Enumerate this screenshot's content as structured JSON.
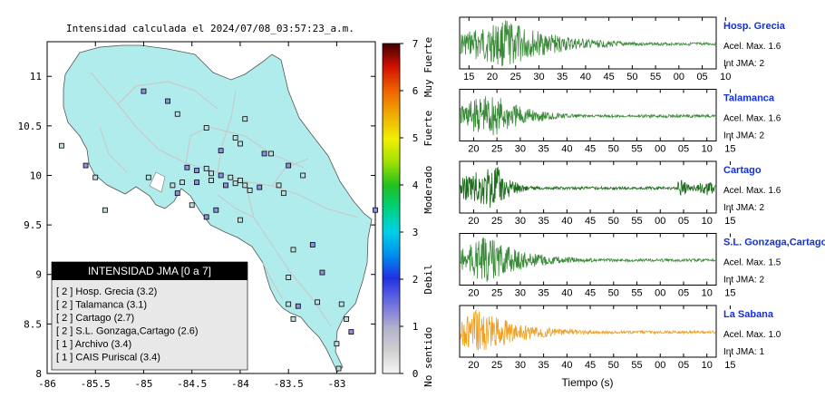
{
  "map": {
    "title": "Intensidad calculada el 2024/07/08_03:57:23_a.m.",
    "x_ticks": [
      "-86",
      "-85.5",
      "-85",
      "-84.5",
      "-84",
      "-83.5",
      "-83"
    ],
    "y_ticks": [
      "11",
      "10.5",
      "10",
      "9.5",
      "9",
      "8.5",
      "8"
    ],
    "xlim": [
      -86,
      -82.6
    ],
    "ylim": [
      8,
      11.35
    ],
    "land_color": "#b0ecec",
    "stations": [
      [
        -85.0,
        10.85
      ],
      [
        -84.75,
        10.75
      ],
      [
        -84.65,
        10.62
      ],
      [
        -84.35,
        10.48
      ],
      [
        -83.95,
        10.57
      ],
      [
        -84.2,
        10.25
      ],
      [
        -84.05,
        10.38
      ],
      [
        -83.75,
        10.22
      ],
      [
        -83.68,
        10.22
      ],
      [
        -83.5,
        10.1
      ],
      [
        -83.35,
        10.0
      ],
      [
        -84.0,
        10.32
      ],
      [
        -84.95,
        9.98
      ],
      [
        -84.55,
        10.08
      ],
      [
        -84.45,
        10.05
      ],
      [
        -84.35,
        10.07
      ],
      [
        -84.3,
        10.02
      ],
      [
        -84.2,
        10.0
      ],
      [
        -84.1,
        9.98
      ],
      [
        -84.0,
        9.95
      ],
      [
        -84.3,
        9.95
      ],
      [
        -84.15,
        9.9
      ],
      [
        -84.05,
        9.92
      ],
      [
        -83.95,
        9.9
      ],
      [
        -83.9,
        9.85
      ],
      [
        -84.45,
        9.93
      ],
      [
        -84.6,
        9.93
      ],
      [
        -84.7,
        9.9
      ],
      [
        -84.65,
        9.82
      ],
      [
        -83.8,
        9.88
      ],
      [
        -83.6,
        9.9
      ],
      [
        -83.55,
        9.82
      ],
      [
        -84.5,
        9.7
      ],
      [
        -84.35,
        9.58
      ],
      [
        -84.0,
        9.55
      ],
      [
        -84.25,
        9.65
      ],
      [
        -85.4,
        9.65
      ],
      [
        -85.6,
        10.1
      ],
      [
        -85.85,
        10.3
      ],
      [
        -85.5,
        9.98
      ],
      [
        -83.45,
        9.25
      ],
      [
        -83.25,
        9.3
      ],
      [
        -83.15,
        9.02
      ],
      [
        -83.5,
        8.97
      ],
      [
        -83.2,
        8.72
      ],
      [
        -83.4,
        8.68
      ],
      [
        -83.5,
        8.7
      ],
      [
        -82.95,
        8.7
      ],
      [
        -82.9,
        8.55
      ],
      [
        -82.85,
        8.42
      ],
      [
        -83.0,
        8.3
      ],
      [
        -82.98,
        8.05
      ],
      [
        -83.45,
        8.55
      ],
      [
        -82.6,
        9.65
      ]
    ],
    "legend_box": {
      "title": "INTENSIDAD JMA [0 a 7]",
      "items": [
        "[ 2 ]  Hosp. Grecia (3.2)",
        "[ 2 ]  Talamanca (3.1)",
        "[ 2 ]  Cartago (2.7)",
        "[ 2 ]  S.L. Gonzaga,Cartago (2.6)",
        "[ 1 ]  Archivo (3.4)",
        "[ 1 ]  CAIS Puriscal (3.4)"
      ]
    }
  },
  "colorbar": {
    "ticks": [
      "0",
      "1",
      "2",
      "3",
      "4",
      "5",
      "6",
      "7"
    ],
    "labels": [
      "No sentido",
      "Debil",
      "Moderado",
      "Fuerte",
      "Muy Fuerte"
    ]
  },
  "chart_data": [
    {
      "type": "line",
      "name": "Hosp. Grecia",
      "color": "#3a8a3a",
      "accel": "Acel. Max. 1.6",
      "jma": "Int JMA: 2",
      "x_ticks": [
        "15",
        "20",
        "25",
        "30",
        "35",
        "40",
        "45",
        "50",
        "55",
        "00",
        "05",
        "10"
      ],
      "tick_start": 15,
      "peak": 0.18,
      "decay": 0.18
    },
    {
      "type": "line",
      "name": "Talamanca",
      "color": "#3a8a3a",
      "accel": "Acel. Max. 1.6",
      "jma": "Int JMA: 2",
      "x_ticks": [
        "20",
        "25",
        "30",
        "35",
        "40",
        "45",
        "50",
        "55",
        "00",
        "05",
        "10",
        "15"
      ],
      "tick_start": 17,
      "peak": 0.12,
      "decay": 0.12
    },
    {
      "type": "line",
      "name": "Cartago",
      "color": "#1e6b1e",
      "accel": "Acel. Max. 1.6",
      "jma": "Int JMA: 2",
      "x_ticks": [
        "20",
        "25",
        "30",
        "35",
        "40",
        "45",
        "50",
        "55",
        "00",
        "05",
        "10",
        "15"
      ],
      "tick_start": 17,
      "peak": 0.14,
      "decay": 0.05
    },
    {
      "type": "line",
      "name": "S.L. Gonzaga,Cartago",
      "color": "#3a8a3a",
      "accel": "Acel. Max. 1.5",
      "jma": "Int JMA: 2",
      "x_ticks": [
        "20",
        "25",
        "30",
        "35",
        "40",
        "45",
        "50",
        "55",
        "00",
        "05",
        "10",
        "15"
      ],
      "tick_start": 17,
      "peak": 0.1,
      "decay": 0.14
    },
    {
      "type": "line",
      "name": "La Sabana",
      "color": "#f0a020",
      "accel": "Acel. Max. 1.0",
      "jma": "Int JMA: 1",
      "x_ticks": [
        "20",
        "25",
        "30",
        "35",
        "40",
        "45",
        "50",
        "55",
        "00",
        "05",
        "10",
        "15"
      ],
      "tick_start": 17,
      "peak": 0.06,
      "decay": 0.16
    }
  ],
  "waveform_xlabel": "Tiempo (s)"
}
